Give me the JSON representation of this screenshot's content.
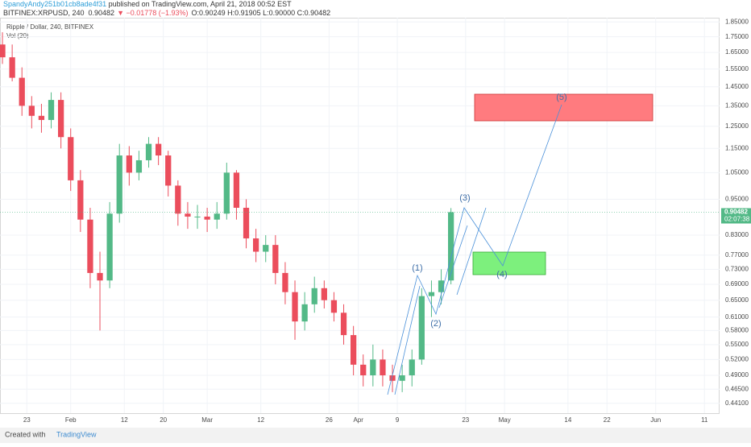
{
  "header": {
    "author": "SpandyAndy251b01cb8ade4f31",
    "published": " published on TradingView.com, April 21, 2018 00:52 EST",
    "symbol": "BITFINEX:XRPUSD, 240",
    "last": "0.90482",
    "change": "▼ −0.01778 (−1.93%)",
    "ohlc": "O:0.90249 H:0.91905 L:0.90000 C:0.90482"
  },
  "chart_data": {
    "type": "candlestick",
    "title": "Ripple / Dollar, 240, BITFINEX",
    "indicator": "Vol (20)",
    "x": [
      18,
      20,
      22,
      24,
      26,
      28,
      30,
      32,
      34,
      36,
      38,
      40,
      42,
      44,
      46,
      48,
      50,
      52,
      54,
      56,
      58,
      60,
      62,
      64,
      66,
      68,
      70,
      72,
      74,
      76,
      78,
      80,
      82,
      84,
      86,
      88,
      90,
      92,
      94,
      96,
      98,
      100,
      102,
      104,
      106,
      108,
      110
    ],
    "open": [
      1.7,
      1.62,
      1.5,
      1.35,
      1.3,
      1.28,
      1.38,
      1.2,
      1.02,
      0.88,
      0.72,
      0.7,
      0.9,
      1.12,
      1.05,
      1.1,
      1.17,
      1.12,
      1.0,
      0.9,
      0.89,
      0.89,
      0.88,
      0.9,
      1.05,
      0.92,
      0.82,
      0.78,
      0.8,
      0.72,
      0.67,
      0.6,
      0.64,
      0.68,
      0.65,
      0.62,
      0.57,
      0.51,
      0.49,
      0.52,
      0.49,
      0.48,
      0.49,
      0.52,
      0.66,
      0.67,
      0.7
    ],
    "high": [
      1.78,
      1.7,
      1.56,
      1.4,
      1.36,
      1.42,
      1.42,
      1.24,
      1.06,
      0.92,
      0.78,
      0.94,
      1.17,
      1.16,
      1.14,
      1.2,
      1.2,
      1.14,
      1.02,
      0.94,
      0.93,
      0.92,
      0.94,
      1.09,
      1.06,
      0.95,
      0.85,
      0.83,
      0.83,
      0.75,
      0.7,
      0.67,
      0.71,
      0.7,
      0.67,
      0.64,
      0.59,
      0.53,
      0.55,
      0.54,
      0.51,
      0.51,
      0.54,
      0.68,
      0.7,
      0.73,
      0.91905
    ],
    "low": [
      1.58,
      1.48,
      1.3,
      1.24,
      1.22,
      1.24,
      1.15,
      0.98,
      0.84,
      0.68,
      0.58,
      0.68,
      0.87,
      1.0,
      1.02,
      1.07,
      1.08,
      0.96,
      0.86,
      0.85,
      0.85,
      0.84,
      0.85,
      0.88,
      0.88,
      0.79,
      0.75,
      0.75,
      0.69,
      0.64,
      0.56,
      0.58,
      0.62,
      0.63,
      0.6,
      0.55,
      0.49,
      0.47,
      0.47,
      0.47,
      0.46,
      0.46,
      0.47,
      0.51,
      0.61,
      0.64,
      0.69
    ],
    "close": [
      1.62,
      1.5,
      1.35,
      1.3,
      1.28,
      1.38,
      1.2,
      1.02,
      0.88,
      0.72,
      0.7,
      0.9,
      1.12,
      1.05,
      1.1,
      1.17,
      1.12,
      1.0,
      0.9,
      0.89,
      0.89,
      0.88,
      0.9,
      1.05,
      0.92,
      0.82,
      0.78,
      0.8,
      0.72,
      0.67,
      0.6,
      0.64,
      0.68,
      0.65,
      0.62,
      0.57,
      0.51,
      0.49,
      0.52,
      0.49,
      0.48,
      0.49,
      0.52,
      0.66,
      0.67,
      0.7,
      0.90482
    ],
    "up_color": "#53b987",
    "down_color": "#eb4d5c",
    "grid": true,
    "log_scale": true,
    "xlim": [
      17.5,
      165.1
    ],
    "ylim": [
      0.425,
      1.88
    ],
    "xticks": [
      {
        "value": 23,
        "label": "23"
      },
      {
        "value": 32,
        "label": "Feb"
      },
      {
        "value": 43,
        "label": "12"
      },
      {
        "value": 51,
        "label": "20"
      },
      {
        "value": 60,
        "label": "Mar"
      },
      {
        "value": 71,
        "label": "12"
      },
      {
        "value": 85,
        "label": "26"
      },
      {
        "value": 91,
        "label": "Apr"
      },
      {
        "value": 99,
        "label": "9"
      },
      {
        "value": 113,
        "label": "23"
      },
      {
        "value": 121,
        "label": "May"
      },
      {
        "value": 134,
        "label": "14"
      },
      {
        "value": 142,
        "label": "22"
      },
      {
        "value": 152,
        "label": "Jun"
      },
      {
        "value": 162,
        "label": "11"
      }
    ],
    "yticks": [
      {
        "value": 1.85,
        "label": "1.85000"
      },
      {
        "value": 1.75,
        "label": "1.75000"
      },
      {
        "value": 1.65,
        "label": "1.65000"
      },
      {
        "value": 1.55,
        "label": "1.55000"
      },
      {
        "value": 1.45,
        "label": "1.45000"
      },
      {
        "value": 1.35,
        "label": "1.35000"
      },
      {
        "value": 1.25,
        "label": "1.25000"
      },
      {
        "value": 1.15,
        "label": "1.15000"
      },
      {
        "value": 1.05,
        "label": "1.05000"
      },
      {
        "value": 0.95,
        "label": "0.95000"
      },
      {
        "value": 0.83,
        "label": "0.83000"
      },
      {
        "value": 0.77,
        "label": "0.77000"
      },
      {
        "value": 0.73,
        "label": "0.73000"
      },
      {
        "value": 0.69,
        "label": "0.69000"
      },
      {
        "value": 0.65,
        "label": "0.65000"
      },
      {
        "value": 0.61,
        "label": "0.61000"
      },
      {
        "value": 0.58,
        "label": "0.58000"
      },
      {
        "value": 0.55,
        "label": "0.55000"
      },
      {
        "value": 0.52,
        "label": "0.52000"
      },
      {
        "value": 0.49,
        "label": "0.49000"
      },
      {
        "value": 0.465,
        "label": "0.46500"
      },
      {
        "value": 0.441,
        "label": "0.44100"
      }
    ],
    "last_price": 0.90482,
    "countdown": "02:07:38",
    "waves": [
      "(1)",
      "(2)",
      "(3)",
      "(4)",
      "(5)"
    ]
  },
  "footer": {
    "created": "Created with",
    "brand": "TradingView"
  }
}
